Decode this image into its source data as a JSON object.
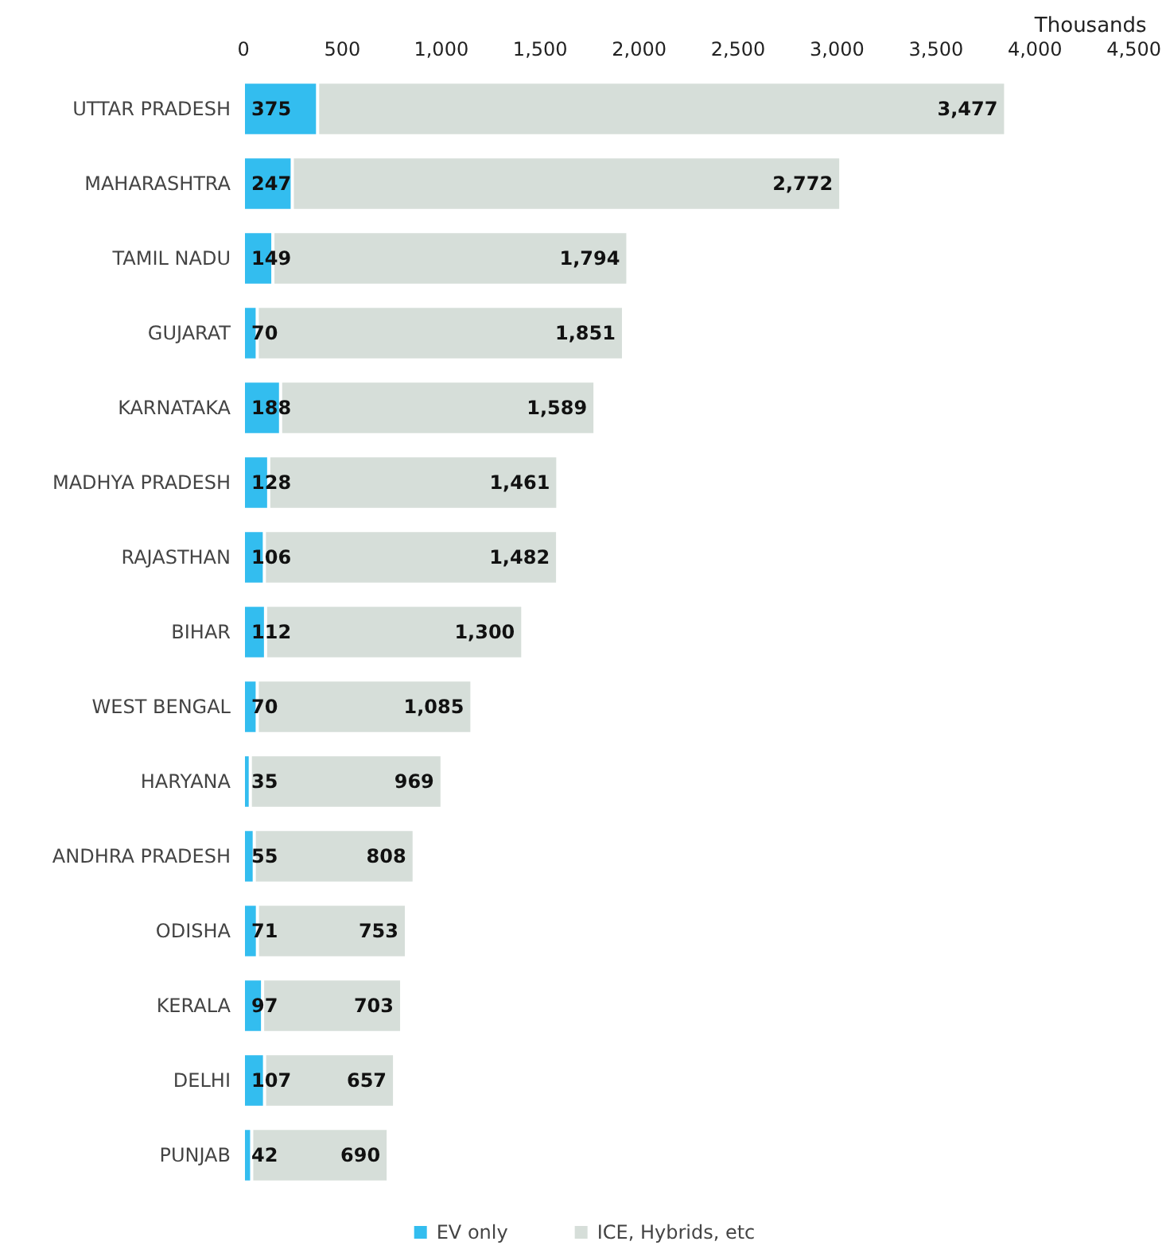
{
  "chart_data": {
    "type": "bar",
    "orientation": "horizontal",
    "stacked": true,
    "xlabel": "Thousands",
    "categories": [
      "UTTAR PRADESH",
      "MAHARASHTRA",
      "TAMIL NADU",
      "GUJARAT",
      "KARNATAKA",
      "MADHYA PRADESH",
      "RAJASTHAN",
      "BIHAR",
      "WEST BENGAL",
      "HARYANA",
      "ANDHRA PRADESH",
      "ODISHA",
      "KERALA",
      "DELHI",
      "PUNJAB"
    ],
    "series": [
      {
        "name": "EV only",
        "color": "#33bdef",
        "values": [
          375,
          247,
          149,
          70,
          188,
          128,
          106,
          112,
          70,
          35,
          55,
          71,
          97,
          107,
          42
        ],
        "value_labels": [
          "375",
          "247",
          "149",
          "70",
          "188",
          "128",
          "106",
          "112",
          "70",
          "35",
          "55",
          "71",
          "97",
          "107",
          "42"
        ]
      },
      {
        "name": "ICE, Hybrids, etc",
        "color": "#d6ded9",
        "values": [
          3477,
          2772,
          1794,
          1851,
          1589,
          1461,
          1482,
          1300,
          1085,
          969,
          808,
          753,
          703,
          657,
          690
        ],
        "value_labels": [
          "3,477",
          "2,772",
          "1,794",
          "1,851",
          "1,589",
          "1,461",
          "1,482",
          "1,300",
          "1,085",
          "969",
          "808",
          "753",
          "703",
          "657",
          "690"
        ]
      }
    ],
    "xlim": [
      0,
      4500
    ],
    "xticks": [
      0,
      500,
      {
        "value": 1000,
        "label": "1,000"
      },
      {
        "value": 1500,
        "label": "1,500"
      },
      {
        "value": 2000,
        "label": "2,000"
      },
      {
        "value": 2500,
        "label": "2,500"
      },
      {
        "value": 3000,
        "label": "3,000"
      },
      {
        "value": 3500,
        "label": "3,500"
      },
      {
        "value": 4000,
        "label": "4,000"
      },
      {
        "value": 4500,
        "label": "4,500"
      }
    ],
    "grid": false,
    "legend": "bottom"
  }
}
